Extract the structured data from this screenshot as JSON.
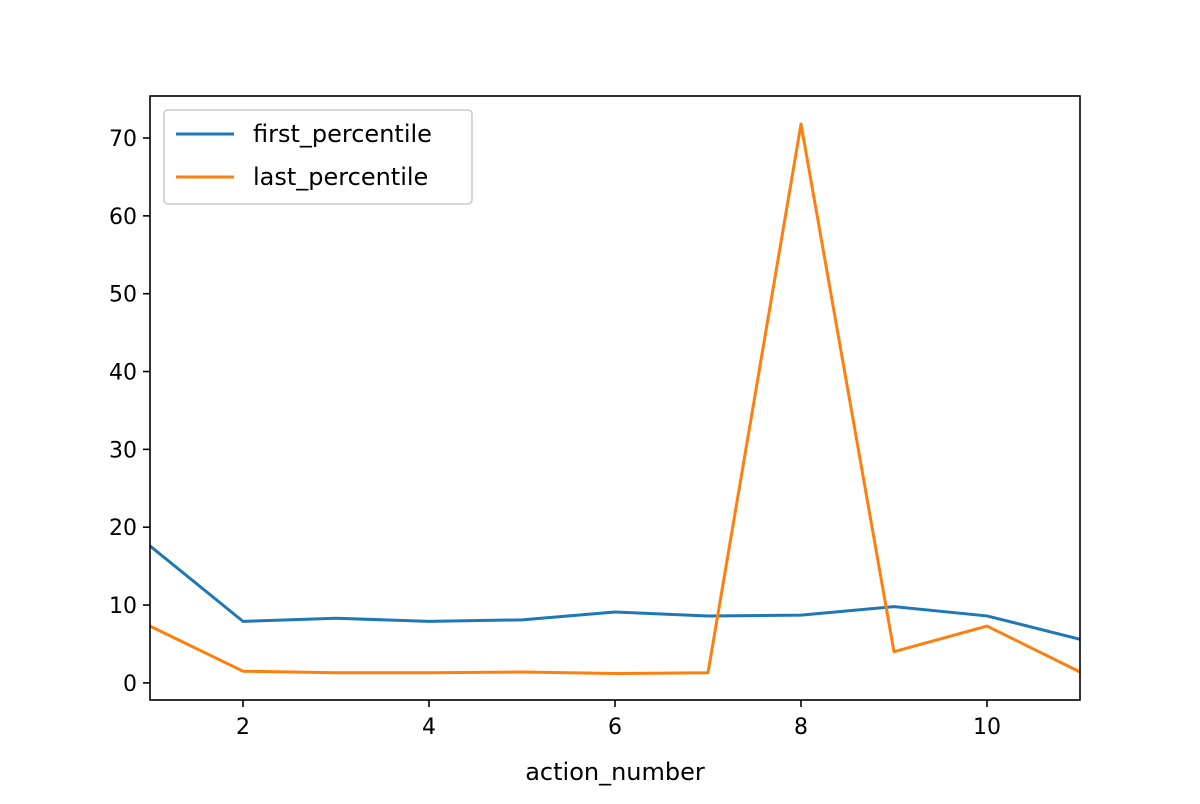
{
  "chart_data": {
    "type": "line",
    "title": "",
    "xlabel": "action_number",
    "ylabel": "",
    "xlim": [
      1,
      11
    ],
    "ylim": [
      -2.2,
      75.4
    ],
    "xticks": [
      2,
      4,
      6,
      8,
      10
    ],
    "yticks": [
      0,
      10,
      20,
      30,
      40,
      50,
      60,
      70
    ],
    "grid": false,
    "legend_position": "upper-left",
    "x": [
      1,
      2,
      3,
      4,
      5,
      6,
      7,
      8,
      9,
      10,
      11
    ],
    "series": [
      {
        "name": "first_percentile",
        "color": "#1f77b4",
        "values": [
          17.6,
          7.9,
          8.3,
          7.9,
          8.1,
          9.1,
          8.6,
          8.7,
          9.8,
          8.6,
          5.6
        ]
      },
      {
        "name": "last_percentile",
        "color": "#ff7f0e",
        "values": [
          7.3,
          1.5,
          1.3,
          1.3,
          1.4,
          1.2,
          1.3,
          71.8,
          4.0,
          7.3,
          1.4
        ]
      }
    ]
  }
}
